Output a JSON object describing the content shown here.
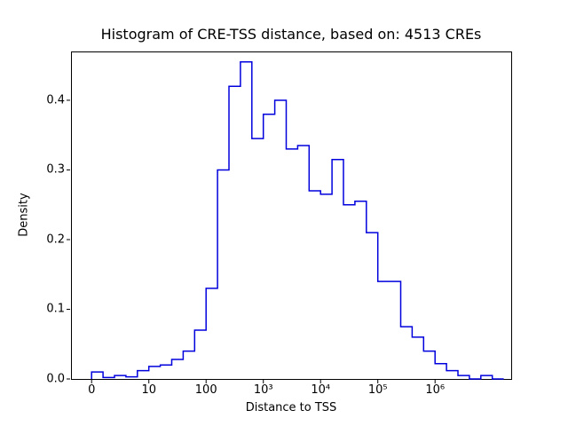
{
  "chart_data": {
    "type": "bar",
    "subtype": "step-histogram",
    "title": "Histogram of CRE-TSS distance, based on: 4513 CREs",
    "xlabel": "Distance to TSS",
    "ylabel": "Density",
    "x_scale": "log10-distance-units",
    "x_tick_values": [
      0,
      1,
      2,
      3,
      4,
      5,
      6
    ],
    "x_tick_labels": [
      "0",
      "10",
      "100",
      "10³",
      "10⁴",
      "10⁵",
      "10⁶"
    ],
    "y_tick_values": [
      0.0,
      0.1,
      0.2,
      0.3,
      0.4
    ],
    "y_tick_labels": [
      "0.0",
      "0.1",
      "0.2",
      "0.3",
      "0.4"
    ],
    "xlim": [
      -0.36,
      7.33
    ],
    "ylim": [
      0,
      0.47
    ],
    "grid": false,
    "legend": "none",
    "line_color": "#0000dd",
    "bin_start": 0.0,
    "bin_width": 0.2,
    "densities": [
      0.01,
      0.002,
      0.005,
      0.003,
      0.012,
      0.018,
      0.02,
      0.028,
      0.04,
      0.07,
      0.13,
      0.3,
      0.42,
      0.455,
      0.345,
      0.38,
      0.4,
      0.33,
      0.335,
      0.27,
      0.265,
      0.315,
      0.25,
      0.255,
      0.21,
      0.14,
      0.14,
      0.075,
      0.06,
      0.04,
      0.022,
      0.012,
      0.005,
      0.0,
      0.005,
      0.0
    ]
  }
}
